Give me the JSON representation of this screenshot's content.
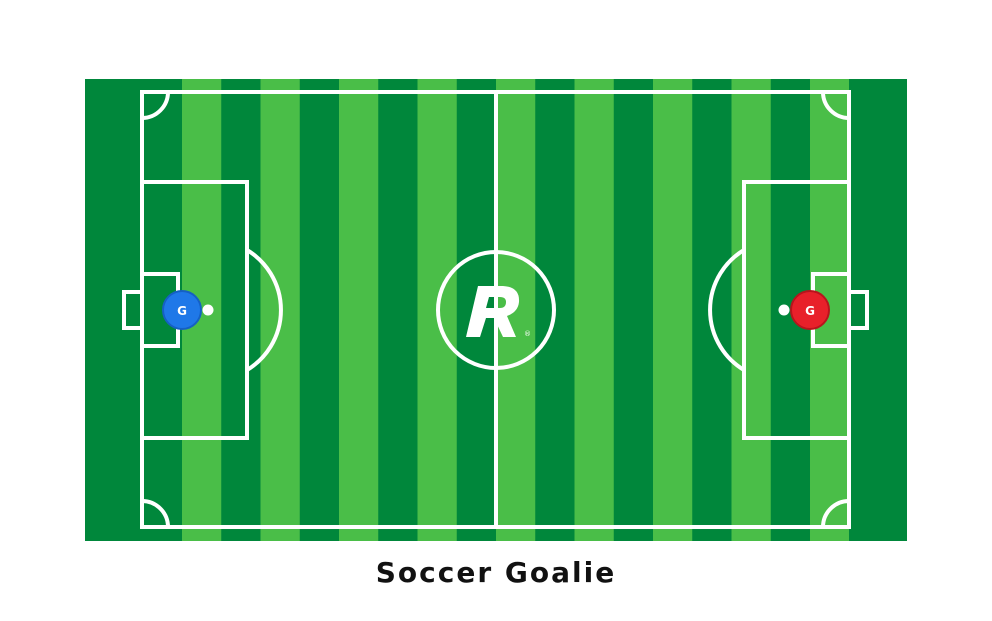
{
  "caption": "Soccer Goalie",
  "colors": {
    "stripe_dark": "#00873b",
    "stripe_light": "#4abe48",
    "lines": "#ffffff",
    "goalie_left": "#1f78e8",
    "goalie_right": "#e8202a"
  },
  "players": [
    {
      "label": "G",
      "team": "left",
      "role": "goalie"
    },
    {
      "label": "G",
      "team": "right",
      "role": "goalie"
    }
  ],
  "logo": {
    "letter": "R",
    "mark": "®"
  }
}
